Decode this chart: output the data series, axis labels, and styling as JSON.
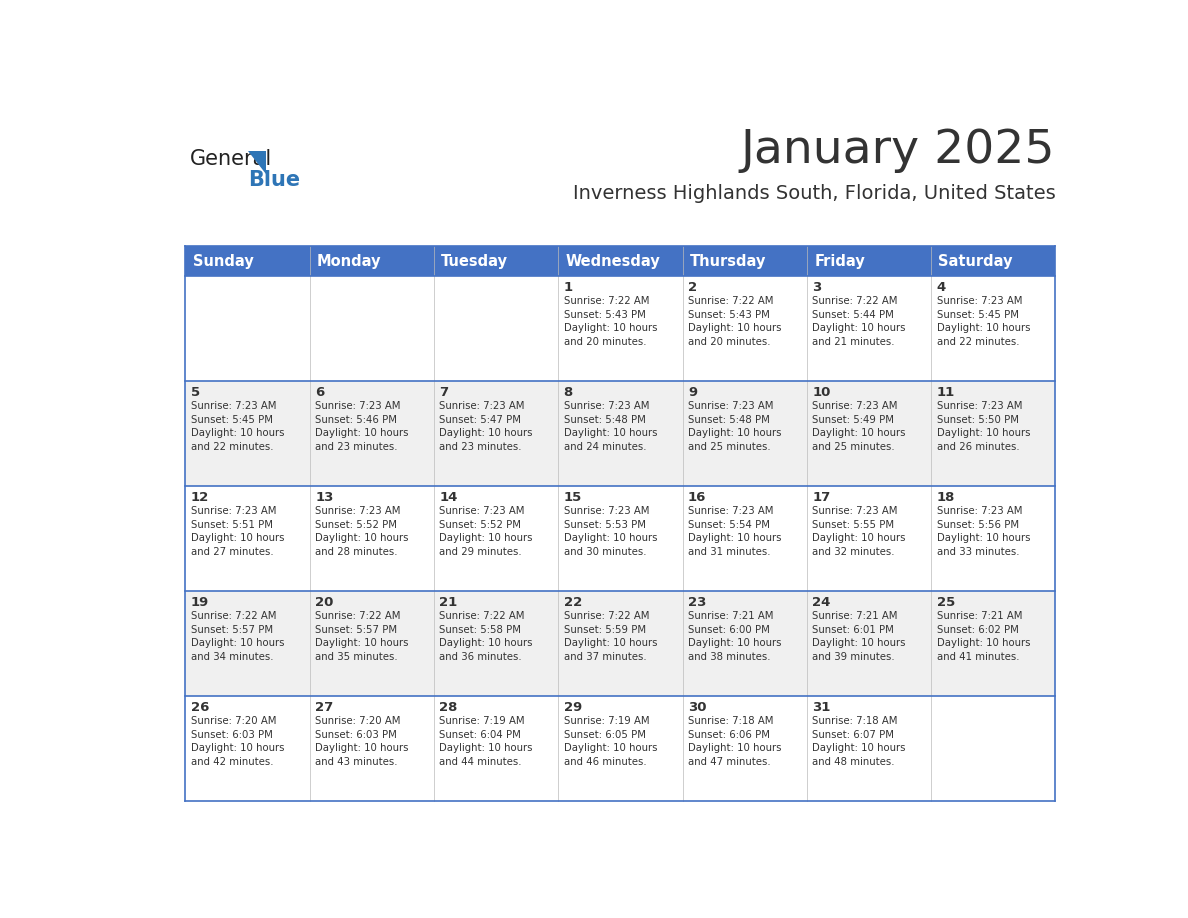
{
  "title": "January 2025",
  "subtitle": "Inverness Highlands South, Florida, United States",
  "header_color": "#4472C4",
  "header_text_color": "#FFFFFF",
  "days_of_week": [
    "Sunday",
    "Monday",
    "Tuesday",
    "Wednesday",
    "Thursday",
    "Friday",
    "Saturday"
  ],
  "text_color": "#333333",
  "day_num_color": "#333333",
  "border_color": "#4472C4",
  "logo_general_color": "#222222",
  "logo_blue_color": "#2E75B6",
  "calendar": [
    [
      {
        "day": null,
        "info": ""
      },
      {
        "day": null,
        "info": ""
      },
      {
        "day": null,
        "info": ""
      },
      {
        "day": 1,
        "info": "Sunrise: 7:22 AM\nSunset: 5:43 PM\nDaylight: 10 hours\nand 20 minutes."
      },
      {
        "day": 2,
        "info": "Sunrise: 7:22 AM\nSunset: 5:43 PM\nDaylight: 10 hours\nand 20 minutes."
      },
      {
        "day": 3,
        "info": "Sunrise: 7:22 AM\nSunset: 5:44 PM\nDaylight: 10 hours\nand 21 minutes."
      },
      {
        "day": 4,
        "info": "Sunrise: 7:23 AM\nSunset: 5:45 PM\nDaylight: 10 hours\nand 22 minutes."
      }
    ],
    [
      {
        "day": 5,
        "info": "Sunrise: 7:23 AM\nSunset: 5:45 PM\nDaylight: 10 hours\nand 22 minutes."
      },
      {
        "day": 6,
        "info": "Sunrise: 7:23 AM\nSunset: 5:46 PM\nDaylight: 10 hours\nand 23 minutes."
      },
      {
        "day": 7,
        "info": "Sunrise: 7:23 AM\nSunset: 5:47 PM\nDaylight: 10 hours\nand 23 minutes."
      },
      {
        "day": 8,
        "info": "Sunrise: 7:23 AM\nSunset: 5:48 PM\nDaylight: 10 hours\nand 24 minutes."
      },
      {
        "day": 9,
        "info": "Sunrise: 7:23 AM\nSunset: 5:48 PM\nDaylight: 10 hours\nand 25 minutes."
      },
      {
        "day": 10,
        "info": "Sunrise: 7:23 AM\nSunset: 5:49 PM\nDaylight: 10 hours\nand 25 minutes."
      },
      {
        "day": 11,
        "info": "Sunrise: 7:23 AM\nSunset: 5:50 PM\nDaylight: 10 hours\nand 26 minutes."
      }
    ],
    [
      {
        "day": 12,
        "info": "Sunrise: 7:23 AM\nSunset: 5:51 PM\nDaylight: 10 hours\nand 27 minutes."
      },
      {
        "day": 13,
        "info": "Sunrise: 7:23 AM\nSunset: 5:52 PM\nDaylight: 10 hours\nand 28 minutes."
      },
      {
        "day": 14,
        "info": "Sunrise: 7:23 AM\nSunset: 5:52 PM\nDaylight: 10 hours\nand 29 minutes."
      },
      {
        "day": 15,
        "info": "Sunrise: 7:23 AM\nSunset: 5:53 PM\nDaylight: 10 hours\nand 30 minutes."
      },
      {
        "day": 16,
        "info": "Sunrise: 7:23 AM\nSunset: 5:54 PM\nDaylight: 10 hours\nand 31 minutes."
      },
      {
        "day": 17,
        "info": "Sunrise: 7:23 AM\nSunset: 5:55 PM\nDaylight: 10 hours\nand 32 minutes."
      },
      {
        "day": 18,
        "info": "Sunrise: 7:23 AM\nSunset: 5:56 PM\nDaylight: 10 hours\nand 33 minutes."
      }
    ],
    [
      {
        "day": 19,
        "info": "Sunrise: 7:22 AM\nSunset: 5:57 PM\nDaylight: 10 hours\nand 34 minutes."
      },
      {
        "day": 20,
        "info": "Sunrise: 7:22 AM\nSunset: 5:57 PM\nDaylight: 10 hours\nand 35 minutes."
      },
      {
        "day": 21,
        "info": "Sunrise: 7:22 AM\nSunset: 5:58 PM\nDaylight: 10 hours\nand 36 minutes."
      },
      {
        "day": 22,
        "info": "Sunrise: 7:22 AM\nSunset: 5:59 PM\nDaylight: 10 hours\nand 37 minutes."
      },
      {
        "day": 23,
        "info": "Sunrise: 7:21 AM\nSunset: 6:00 PM\nDaylight: 10 hours\nand 38 minutes."
      },
      {
        "day": 24,
        "info": "Sunrise: 7:21 AM\nSunset: 6:01 PM\nDaylight: 10 hours\nand 39 minutes."
      },
      {
        "day": 25,
        "info": "Sunrise: 7:21 AM\nSunset: 6:02 PM\nDaylight: 10 hours\nand 41 minutes."
      }
    ],
    [
      {
        "day": 26,
        "info": "Sunrise: 7:20 AM\nSunset: 6:03 PM\nDaylight: 10 hours\nand 42 minutes."
      },
      {
        "day": 27,
        "info": "Sunrise: 7:20 AM\nSunset: 6:03 PM\nDaylight: 10 hours\nand 43 minutes."
      },
      {
        "day": 28,
        "info": "Sunrise: 7:19 AM\nSunset: 6:04 PM\nDaylight: 10 hours\nand 44 minutes."
      },
      {
        "day": 29,
        "info": "Sunrise: 7:19 AM\nSunset: 6:05 PM\nDaylight: 10 hours\nand 46 minutes."
      },
      {
        "day": 30,
        "info": "Sunrise: 7:18 AM\nSunset: 6:06 PM\nDaylight: 10 hours\nand 47 minutes."
      },
      {
        "day": 31,
        "info": "Sunrise: 7:18 AM\nSunset: 6:07 PM\nDaylight: 10 hours\nand 48 minutes."
      },
      {
        "day": null,
        "info": ""
      }
    ]
  ]
}
